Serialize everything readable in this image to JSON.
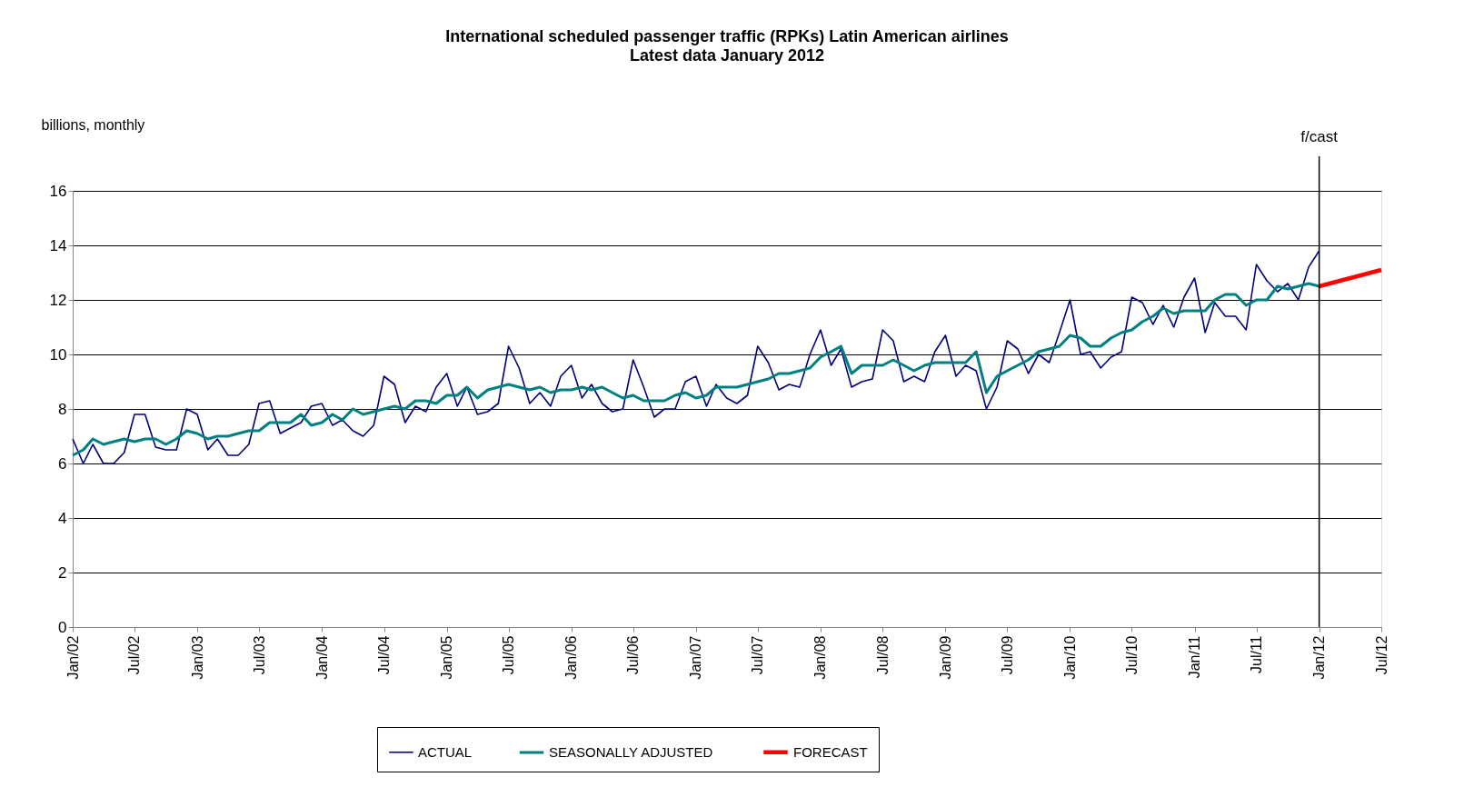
{
  "chart_data": {
    "type": "line",
    "title": "International scheduled passenger traffic (RPKs) Latin American airlines",
    "subtitle": "Latest data January 2012",
    "ylabel": "billions, monthly",
    "xlim": [
      "2002-01",
      "2012-07"
    ],
    "xticks": [
      {
        "value": "2002-01",
        "label": "Jan/02"
      },
      {
        "value": "2002-07",
        "label": "Jul/02"
      },
      {
        "value": "2003-01",
        "label": "Jan/03"
      },
      {
        "value": "2003-07",
        "label": "Jul/03"
      },
      {
        "value": "2004-01",
        "label": "Jan/04"
      },
      {
        "value": "2004-07",
        "label": "Jul/04"
      },
      {
        "value": "2005-01",
        "label": "Jan/05"
      },
      {
        "value": "2005-07",
        "label": "Jul/05"
      },
      {
        "value": "2006-01",
        "label": "Jan/06"
      },
      {
        "value": "2006-07",
        "label": "Jul/06"
      },
      {
        "value": "2007-01",
        "label": "Jan/07"
      },
      {
        "value": "2007-07",
        "label": "Jul/07"
      },
      {
        "value": "2008-01",
        "label": "Jan/08"
      },
      {
        "value": "2008-07",
        "label": "Jul/08"
      },
      {
        "value": "2009-01",
        "label": "Jan/09"
      },
      {
        "value": "2009-07",
        "label": "Jul/09"
      },
      {
        "value": "2010-01",
        "label": "Jan/10"
      },
      {
        "value": "2010-07",
        "label": "Jul/10"
      },
      {
        "value": "2011-01",
        "label": "Jan/11"
      },
      {
        "value": "2011-07",
        "label": "Jul/11"
      },
      {
        "value": "2012-01",
        "label": "Jan/12"
      },
      {
        "value": "2012-07",
        "label": "Jul/12"
      }
    ],
    "x": [
      "2002-01",
      "2002-02",
      "2002-03",
      "2002-04",
      "2002-05",
      "2002-06",
      "2002-07",
      "2002-08",
      "2002-09",
      "2002-10",
      "2002-11",
      "2002-12",
      "2003-01",
      "2003-02",
      "2003-03",
      "2003-04",
      "2003-05",
      "2003-06",
      "2003-07",
      "2003-08",
      "2003-09",
      "2003-10",
      "2003-11",
      "2003-12",
      "2004-01",
      "2004-02",
      "2004-03",
      "2004-04",
      "2004-05",
      "2004-06",
      "2004-07",
      "2004-08",
      "2004-09",
      "2004-10",
      "2004-11",
      "2004-12",
      "2005-01",
      "2005-02",
      "2005-03",
      "2005-04",
      "2005-05",
      "2005-06",
      "2005-07",
      "2005-08",
      "2005-09",
      "2005-10",
      "2005-11",
      "2005-12",
      "2006-01",
      "2006-02",
      "2006-03",
      "2006-04",
      "2006-05",
      "2006-06",
      "2006-07",
      "2006-08",
      "2006-09",
      "2006-10",
      "2006-11",
      "2006-12",
      "2007-01",
      "2007-02",
      "2007-03",
      "2007-04",
      "2007-05",
      "2007-06",
      "2007-07",
      "2007-08",
      "2007-09",
      "2007-10",
      "2007-11",
      "2007-12",
      "2008-01",
      "2008-02",
      "2008-03",
      "2008-04",
      "2008-05",
      "2008-06",
      "2008-07",
      "2008-08",
      "2008-09",
      "2008-10",
      "2008-11",
      "2008-12",
      "2009-01",
      "2009-02",
      "2009-03",
      "2009-04",
      "2009-05",
      "2009-06",
      "2009-07",
      "2009-08",
      "2009-09",
      "2009-10",
      "2009-11",
      "2009-12",
      "2010-01",
      "2010-02",
      "2010-03",
      "2010-04",
      "2010-05",
      "2010-06",
      "2010-07",
      "2010-08",
      "2010-09",
      "2010-10",
      "2010-11",
      "2010-12",
      "2011-01",
      "2011-02",
      "2011-03",
      "2011-04",
      "2011-05",
      "2011-06",
      "2011-07",
      "2011-08",
      "2011-09",
      "2011-10",
      "2011-11",
      "2011-12",
      "2012-01"
    ],
    "ylim": [
      0,
      16
    ],
    "yticks": [
      0,
      2,
      4,
      6,
      8,
      10,
      12,
      14,
      16
    ],
    "grid": "y",
    "legend": "bottom",
    "line_style": "solid",
    "marker": "none",
    "ref_lines": [
      {
        "axis": "x",
        "value": "2012-01",
        "label": "f/cast",
        "color": "#000000"
      }
    ],
    "series": [
      {
        "name": "ACTUAL",
        "color": "#000080",
        "values": [
          6.9,
          6.0,
          6.7,
          6.0,
          6.0,
          6.4,
          7.8,
          7.8,
          6.6,
          6.5,
          6.5,
          8.0,
          7.8,
          6.5,
          6.9,
          6.3,
          6.3,
          6.7,
          8.2,
          8.3,
          7.1,
          7.3,
          7.5,
          8.1,
          8.2,
          7.4,
          7.6,
          7.2,
          7.0,
          7.4,
          9.2,
          8.9,
          7.5,
          8.1,
          7.9,
          8.8,
          9.3,
          8.1,
          8.8,
          7.8,
          7.9,
          8.2,
          10.3,
          9.5,
          8.2,
          8.6,
          8.1,
          9.2,
          9.6,
          8.4,
          8.9,
          8.2,
          7.9,
          8.0,
          9.8,
          8.8,
          7.7,
          8.0,
          8.0,
          9.0,
          9.2,
          8.1,
          8.9,
          8.4,
          8.2,
          8.5,
          10.3,
          9.7,
          8.7,
          8.9,
          8.8,
          10.0,
          10.9,
          9.6,
          10.2,
          8.8,
          9.0,
          9.1,
          10.9,
          10.5,
          9.0,
          9.2,
          9.0,
          10.1,
          10.7,
          9.2,
          9.6,
          9.4,
          8.0,
          8.8,
          10.5,
          10.2,
          9.3,
          10.0,
          9.7,
          10.8,
          12.0,
          10.0,
          10.1,
          9.5,
          9.9,
          10.1,
          12.1,
          11.9,
          11.1,
          11.8,
          11.0,
          12.1,
          12.8,
          10.8,
          11.9,
          11.4,
          11.4,
          10.9,
          13.3,
          12.7,
          12.3,
          12.6,
          12.0,
          13.2,
          13.8
        ]
      },
      {
        "name": "SEASONALLY ADJUSTED",
        "color": "#008080",
        "values": [
          6.3,
          6.5,
          6.9,
          6.7,
          6.8,
          6.9,
          6.8,
          6.9,
          6.9,
          6.7,
          6.9,
          7.2,
          7.1,
          6.9,
          7.0,
          7.0,
          7.1,
          7.2,
          7.2,
          7.5,
          7.5,
          7.5,
          7.8,
          7.4,
          7.5,
          7.8,
          7.6,
          8.0,
          7.8,
          7.9,
          8.0,
          8.1,
          8.0,
          8.3,
          8.3,
          8.2,
          8.5,
          8.5,
          8.8,
          8.4,
          8.7,
          8.8,
          8.9,
          8.8,
          8.7,
          8.8,
          8.6,
          8.7,
          8.7,
          8.8,
          8.7,
          8.8,
          8.6,
          8.4,
          8.5,
          8.3,
          8.3,
          8.3,
          8.5,
          8.6,
          8.4,
          8.5,
          8.8,
          8.8,
          8.8,
          8.9,
          9.0,
          9.1,
          9.3,
          9.3,
          9.4,
          9.5,
          9.9,
          10.1,
          10.3,
          9.3,
          9.6,
          9.6,
          9.6,
          9.8,
          9.6,
          9.4,
          9.6,
          9.7,
          9.7,
          9.7,
          9.7,
          10.1,
          8.6,
          9.2,
          9.4,
          9.6,
          9.8,
          10.1,
          10.2,
          10.3,
          10.7,
          10.6,
          10.3,
          10.3,
          10.6,
          10.8,
          10.9,
          11.2,
          11.4,
          11.7,
          11.5,
          11.6,
          11.6,
          11.6,
          12.0,
          12.2,
          12.2,
          11.8,
          12.0,
          12.0,
          12.5,
          12.4,
          12.5,
          12.6,
          12.5
        ]
      },
      {
        "name": "FORECAST",
        "color": "#ff0000",
        "x": [
          "2012-01",
          "2012-07"
        ],
        "values": [
          12.5,
          13.1
        ]
      }
    ]
  }
}
